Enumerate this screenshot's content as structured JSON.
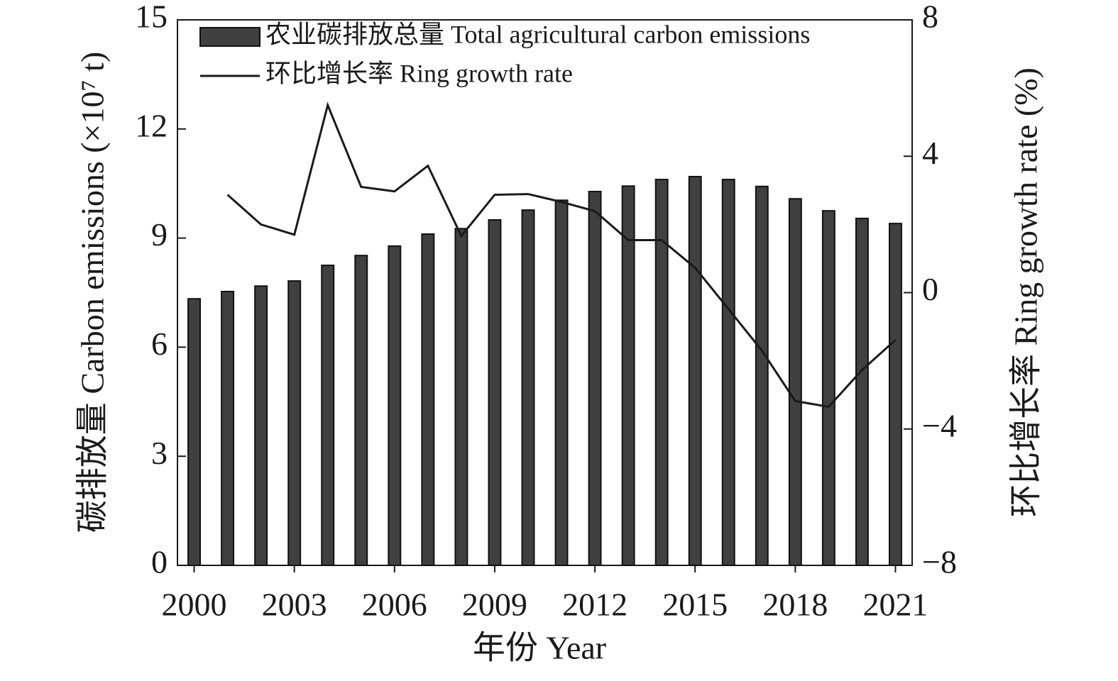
{
  "chart_data": {
    "type": "bar-line",
    "x_label": "年份 Year",
    "y_label": "碳排放量 Carbon emissions (×10⁷ t)",
    "y2_label": "环比增长率 Ring growth rate (%)",
    "x": [
      2000,
      2001,
      2002,
      2003,
      2004,
      2005,
      2006,
      2007,
      2008,
      2009,
      2010,
      2011,
      2012,
      2013,
      2014,
      2015,
      2016,
      2017,
      2018,
      2019,
      2020,
      2021
    ],
    "xlim": [
      1999.5,
      2021.5
    ],
    "xticks": [
      2000,
      2003,
      2006,
      2009,
      2012,
      2015,
      2018,
      2021
    ],
    "ylim": [
      0,
      15
    ],
    "yticks": [
      0,
      3,
      6,
      9,
      12,
      15
    ],
    "y2lim": [
      -8,
      8
    ],
    "y2ticks": [
      {
        "value": -8,
        "label": "−8"
      },
      {
        "value": -4,
        "label": "−4"
      },
      0,
      4,
      8
    ],
    "legend": "top-left",
    "series": [
      {
        "name": "农业碳排放总量 Total agricultural carbon emissions",
        "type": "bar",
        "color": "#404040",
        "values": [
          7.33,
          7.53,
          7.68,
          7.82,
          8.25,
          8.52,
          8.78,
          9.11,
          9.26,
          9.5,
          9.77,
          10.04,
          10.28,
          10.43,
          10.61,
          10.69,
          10.61,
          10.42,
          10.08,
          9.75,
          9.54,
          9.4
        ]
      },
      {
        "name": "环比增长率 Ring growth rate",
        "type": "line",
        "axis": "y2",
        "color": "#1a1a1a",
        "values": [
          null,
          2.87,
          2.0,
          1.7,
          5.5,
          3.1,
          2.97,
          3.72,
          1.66,
          2.87,
          2.89,
          2.66,
          2.39,
          1.54,
          1.54,
          0.73,
          -0.48,
          -1.7,
          -3.18,
          -3.35,
          -2.27,
          -1.39
        ]
      }
    ]
  }
}
